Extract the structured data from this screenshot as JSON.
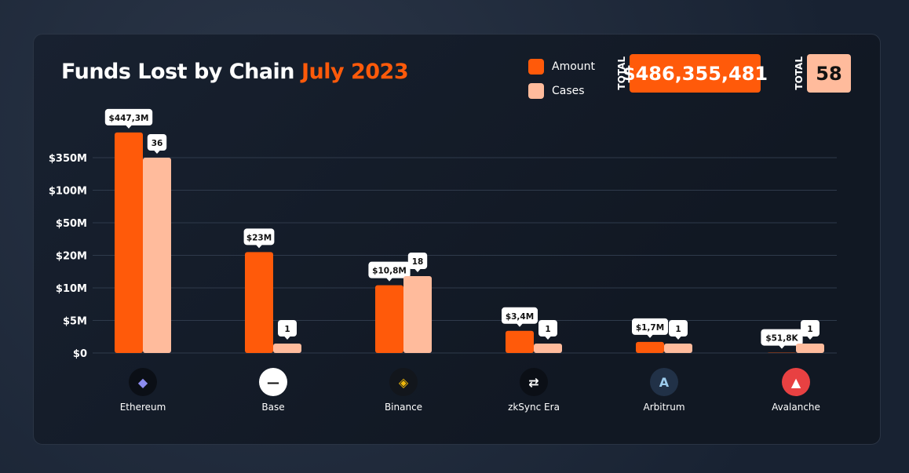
{
  "title": {
    "main": "Funds Lost by Chain",
    "accent": "July 2023"
  },
  "legend": [
    {
      "label": "Amount",
      "color": "#ff5a0a"
    },
    {
      "label": "Cases",
      "color": "#ffbb9c"
    }
  ],
  "totals": {
    "label": "TOTAL",
    "amount": "$486,355,481",
    "cases": "58"
  },
  "chart_data": {
    "type": "bar",
    "title": "Funds Lost by Chain July 2023",
    "categories": [
      "Ethereum",
      "Base",
      "Binance",
      "zkSync Era",
      "Arbitrum",
      "Avalanche"
    ],
    "icons": [
      "ethereum-icon",
      "base-icon",
      "binance-icon",
      "zksync-icon",
      "arbitrum-icon",
      "avalanche-icon"
    ],
    "y_ticks": [
      "$0",
      "$5M",
      "$10M",
      "$20M",
      "$50M",
      "$100M",
      "$350M"
    ],
    "y_tick_values": [
      0,
      5,
      10,
      20,
      50,
      100,
      350
    ],
    "y_scale": "non-linear (ticks equally spaced)",
    "grid": true,
    "legend_position": "top-right",
    "series": [
      {
        "name": "Amount",
        "unit": "$M",
        "color": "#ff5a0a",
        "values": [
          447.3,
          23,
          10.8,
          3.4,
          1.7,
          0.0518
        ],
        "labels": [
          "$447,3M",
          "$23M",
          "$10,8M",
          "$3,4M",
          "$1,7M",
          "$51,8K"
        ]
      },
      {
        "name": "Cases",
        "color": "#ffbb9c",
        "values": [
          36,
          1,
          18,
          1,
          1,
          1
        ],
        "labels": [
          "36",
          "1",
          "18",
          "1",
          "1",
          "1"
        ]
      }
    ]
  }
}
